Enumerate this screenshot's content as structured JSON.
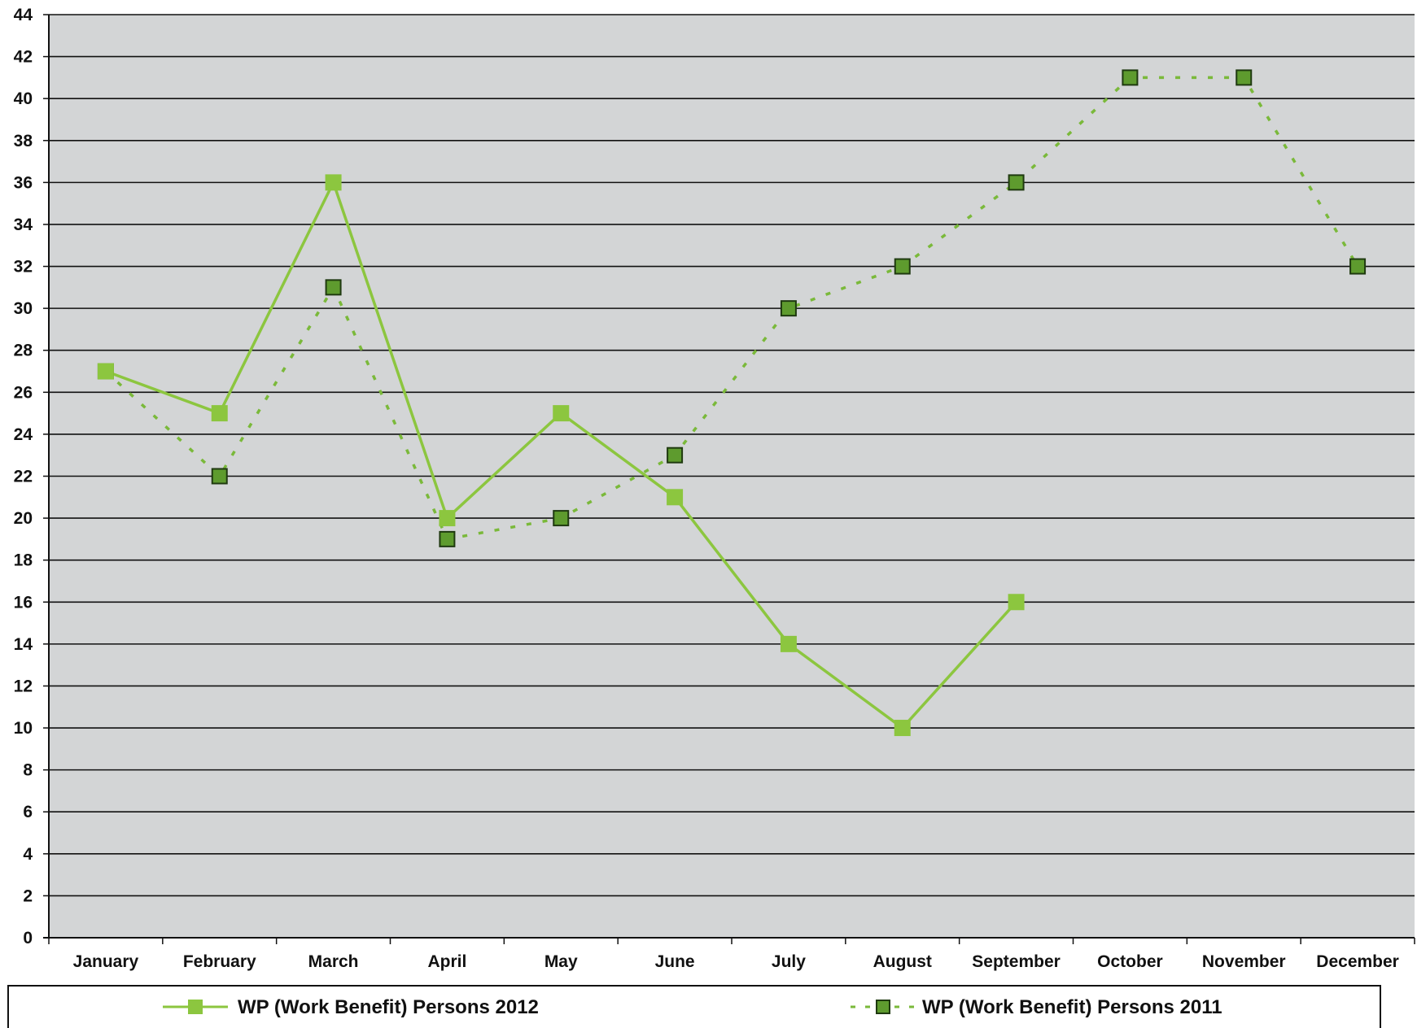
{
  "chart_data": {
    "type": "line",
    "categories": [
      "January",
      "February",
      "March",
      "April",
      "May",
      "June",
      "July",
      "August",
      "September",
      "October",
      "November",
      "December"
    ],
    "ylim": [
      0,
      44
    ],
    "ytick_step": 2,
    "grid": true,
    "legend_position": "bottom",
    "colors": {
      "plot_background": "#d3d5d6",
      "gridline": "#111111",
      "series_2012": "#8cc63f",
      "series_2011_line": "#7ab93a",
      "series_2011_marker": "#5e9b2e",
      "marker_edge": "#1f3a10"
    },
    "series": [
      {
        "name": "WP (Work Benefit) Persons 2012",
        "style": "solid",
        "values": [
          27,
          25,
          36,
          20,
          25,
          21,
          14,
          10,
          16,
          null,
          null,
          null
        ]
      },
      {
        "name": "WP (Work Benefit) Persons 2011",
        "style": "dashed",
        "values": [
          27,
          22,
          31,
          19,
          20,
          23,
          30,
          32,
          36,
          41,
          41,
          32
        ]
      }
    ]
  }
}
